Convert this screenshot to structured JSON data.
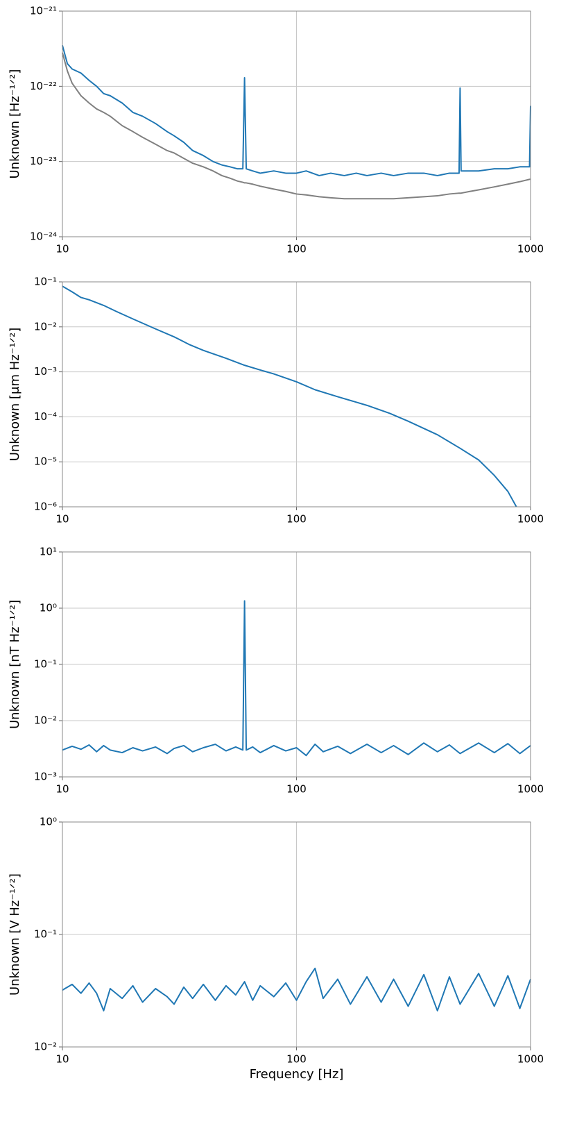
{
  "chart_data": [
    {
      "type": "line",
      "ylabel": "Unknown [Hz⁻¹ᐟ²]",
      "log_x": true,
      "log_y": true,
      "grid": true,
      "xlim": [
        10,
        1000
      ],
      "xticks": [
        10,
        100,
        1000
      ],
      "ylim": [
        1e-24,
        1e-21
      ],
      "yticks": [
        {
          "value": 1e-24,
          "label": "10⁻²⁴"
        },
        {
          "value": 1e-23,
          "label": "10⁻²³"
        },
        {
          "value": 1e-22,
          "label": "10⁻²²"
        },
        {
          "value": 1e-21,
          "label": "10⁻²¹"
        }
      ],
      "x": [
        10,
        10.5,
        11,
        12,
        13,
        14,
        15,
        16,
        18,
        20,
        22,
        25,
        28,
        30,
        33,
        36,
        40,
        44,
        48,
        52,
        56,
        59,
        60,
        61,
        65,
        70,
        80,
        90,
        100,
        110,
        125,
        140,
        160,
        180,
        200,
        230,
        260,
        300,
        350,
        400,
        450,
        495,
        500,
        505,
        550,
        600,
        700,
        800,
        900,
        990,
        1000
      ],
      "series": [
        {
          "color": "#808080",
          "values": [
            2.8e-22,
            1.6e-22,
            1.1e-22,
            7.5e-23,
            6e-23,
            5e-23,
            4.5e-23,
            4e-23,
            3e-23,
            2.5e-23,
            2.1e-23,
            1.7e-23,
            1.4e-23,
            1.3e-23,
            1.1e-23,
            9.5e-24,
            8.5e-24,
            7.5e-24,
            6.5e-24,
            6e-24,
            5.5e-24,
            5.3e-24,
            5.2e-24,
            5.2e-24,
            5e-24,
            4.7e-24,
            4.3e-24,
            4e-24,
            3.7e-24,
            3.6e-24,
            3.4e-24,
            3.3e-24,
            3.2e-24,
            3.2e-24,
            3.2e-24,
            3.2e-24,
            3.2e-24,
            3.3e-24,
            3.4e-24,
            3.5e-24,
            3.7e-24,
            3.8e-24,
            3.8e-24,
            3.8e-24,
            4e-24,
            4.2e-24,
            4.6e-24,
            5e-24,
            5.4e-24,
            5.8e-24,
            5.8e-24
          ]
        },
        {
          "color": "#1f77b4",
          "values": [
            3.5e-22,
            2e-22,
            1.7e-22,
            1.5e-22,
            1.2e-22,
            1e-22,
            8e-23,
            7.5e-23,
            6e-23,
            4.5e-23,
            4e-23,
            3.2e-23,
            2.5e-23,
            2.2e-23,
            1.8e-23,
            1.4e-23,
            1.2e-23,
            1e-23,
            9e-24,
            8.5e-24,
            8e-24,
            8e-24,
            1.3e-22,
            8e-24,
            7.5e-24,
            7e-24,
            7.5e-24,
            7e-24,
            7e-24,
            7.5e-24,
            6.5e-24,
            7e-24,
            6.5e-24,
            7e-24,
            6.5e-24,
            7e-24,
            6.5e-24,
            7e-24,
            7e-24,
            6.5e-24,
            7e-24,
            7e-24,
            9.5e-23,
            7.5e-24,
            7.5e-24,
            7.5e-24,
            8e-24,
            8e-24,
            8.5e-24,
            8.5e-24,
            5.5e-23
          ]
        }
      ]
    },
    {
      "type": "line",
      "ylabel": "Unknown [μm Hz⁻¹ᐟ²]",
      "log_x": true,
      "log_y": true,
      "grid": true,
      "xlim": [
        10,
        1000
      ],
      "xticks": [
        10,
        100,
        1000
      ],
      "ylim": [
        1e-06,
        0.1
      ],
      "yticks": [
        {
          "value": 1e-06,
          "label": "10⁻⁶"
        },
        {
          "value": 1e-05,
          "label": "10⁻⁵"
        },
        {
          "value": 0.0001,
          "label": "10⁻⁴"
        },
        {
          "value": 0.001,
          "label": "10⁻³"
        },
        {
          "value": 0.01,
          "label": "10⁻²"
        },
        {
          "value": 0.1,
          "label": "10⁻¹"
        }
      ],
      "x": [
        10,
        11,
        12,
        13,
        15,
        17,
        20,
        25,
        30,
        35,
        40,
        50,
        60,
        70,
        80,
        100,
        120,
        150,
        200,
        250,
        300,
        400,
        500,
        600,
        700,
        800,
        870
      ],
      "series": [
        {
          "color": "#1f77b4",
          "values": [
            0.08,
            0.06,
            0.045,
            0.04,
            0.03,
            0.022,
            0.015,
            0.009,
            0.006,
            0.004,
            0.003,
            0.002,
            0.0014,
            0.0011,
            0.0009,
            0.0006,
            0.0004,
            0.00028,
            0.00018,
            0.00012,
            8e-05,
            4e-05,
            2e-05,
            1.1e-05,
            5e-06,
            2.2e-06,
            1e-06
          ]
        }
      ]
    },
    {
      "type": "line",
      "ylabel": "Unknown [nT Hz⁻¹ᐟ²]",
      "log_x": true,
      "log_y": true,
      "grid": true,
      "xlim": [
        10,
        1000
      ],
      "xticks": [
        10,
        100,
        1000
      ],
      "ylim": [
        0.001,
        10
      ],
      "yticks": [
        {
          "value": 0.001,
          "label": "10⁻³"
        },
        {
          "value": 0.01,
          "label": "10⁻²"
        },
        {
          "value": 0.1,
          "label": "10⁻¹"
        },
        {
          "value": 1,
          "label": "10⁰"
        },
        {
          "value": 10,
          "label": "10¹"
        }
      ],
      "x": [
        10,
        11,
        12,
        13,
        14,
        15,
        16,
        18,
        20,
        22,
        25,
        28,
        30,
        33,
        36,
        40,
        45,
        50,
        55,
        59,
        60,
        61,
        65,
        70,
        80,
        90,
        100,
        110,
        120,
        130,
        150,
        170,
        200,
        230,
        260,
        300,
        350,
        400,
        450,
        500,
        600,
        700,
        800,
        900,
        1000
      ],
      "series": [
        {
          "color": "#1f77b4",
          "values": [
            0.003,
            0.0035,
            0.0031,
            0.0037,
            0.0028,
            0.0036,
            0.003,
            0.0027,
            0.0033,
            0.0029,
            0.0034,
            0.0026,
            0.0032,
            0.0036,
            0.0028,
            0.0033,
            0.0038,
            0.0029,
            0.0034,
            0.003,
            1.35,
            0.003,
            0.0034,
            0.0027,
            0.0036,
            0.0029,
            0.0033,
            0.0024,
            0.0038,
            0.0028,
            0.0035,
            0.0026,
            0.0038,
            0.0027,
            0.0036,
            0.0025,
            0.004,
            0.0028,
            0.0037,
            0.0026,
            0.004,
            0.0027,
            0.0039,
            0.0026,
            0.0036
          ]
        }
      ]
    },
    {
      "type": "line",
      "ylabel": "Unknown [V Hz⁻¹ᐟ²]",
      "xlabel": "Frequency [Hz]",
      "log_x": true,
      "log_y": true,
      "grid": true,
      "xlim": [
        10,
        1000
      ],
      "xticks": [
        10,
        100,
        1000
      ],
      "ylim": [
        0.01,
        1
      ],
      "yticks": [
        {
          "value": 0.01,
          "label": "10⁻²"
        },
        {
          "value": 0.1,
          "label": "10⁻¹"
        },
        {
          "value": 1,
          "label": "10⁰"
        }
      ],
      "x": [
        10,
        11,
        12,
        13,
        14,
        15,
        16,
        18,
        20,
        22,
        25,
        28,
        30,
        33,
        36,
        40,
        45,
        50,
        55,
        60,
        65,
        70,
        80,
        90,
        100,
        110,
        120,
        130,
        150,
        170,
        200,
        230,
        260,
        300,
        350,
        400,
        450,
        500,
        600,
        700,
        800,
        900,
        1000
      ],
      "series": [
        {
          "color": "#1f77b4",
          "values": [
            0.032,
            0.036,
            0.03,
            0.037,
            0.03,
            0.021,
            0.033,
            0.027,
            0.035,
            0.025,
            0.033,
            0.028,
            0.024,
            0.034,
            0.027,
            0.036,
            0.026,
            0.035,
            0.029,
            0.038,
            0.026,
            0.035,
            0.028,
            0.037,
            0.026,
            0.038,
            0.05,
            0.027,
            0.04,
            0.024,
            0.042,
            0.025,
            0.04,
            0.023,
            0.044,
            0.021,
            0.042,
            0.024,
            0.045,
            0.023,
            0.043,
            0.022,
            0.04
          ]
        }
      ]
    }
  ]
}
